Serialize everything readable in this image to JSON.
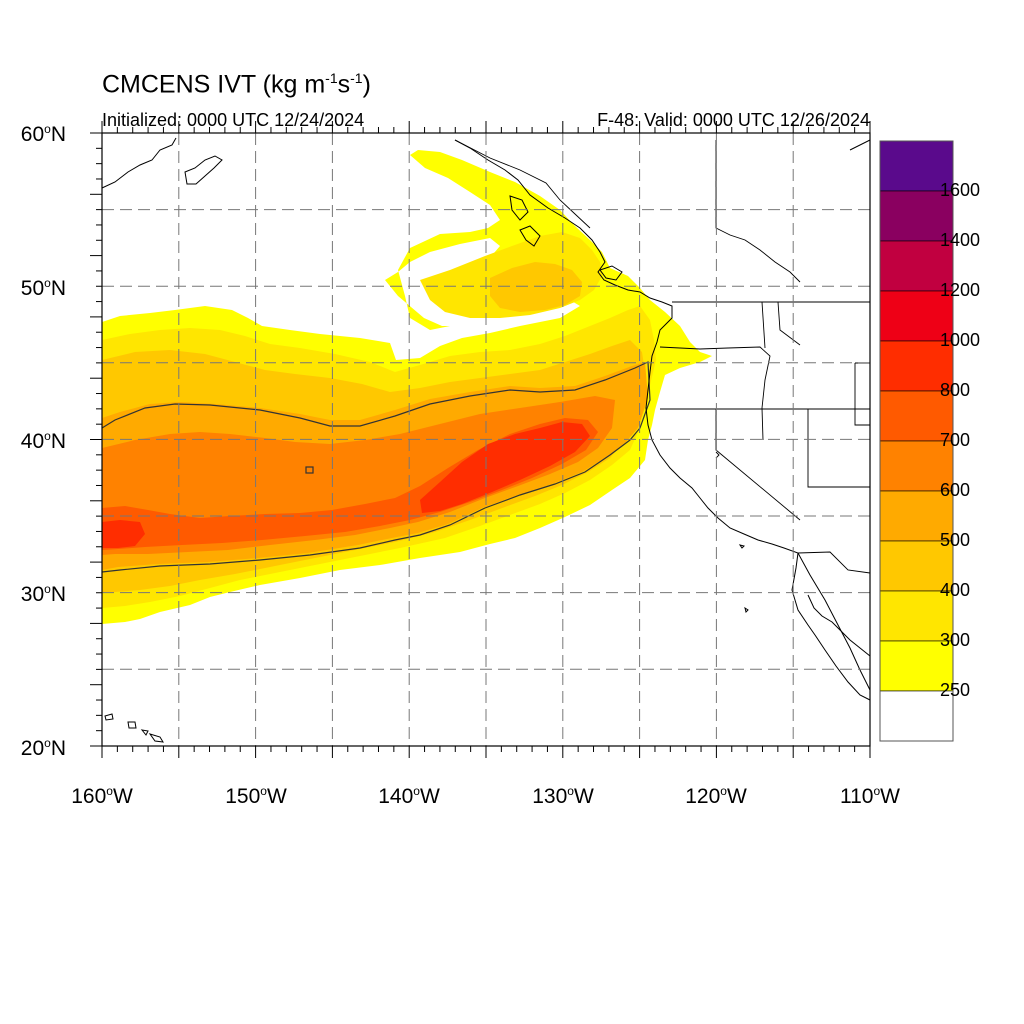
{
  "header": {
    "title_main": "CMCENS IVT (kg m",
    "title_exp1": "-1",
    "title_mid": "s",
    "title_exp2": "-1",
    "title_end": ")",
    "initialized": "Initialized: 0000 UTC 12/24/2024",
    "valid": "F-48: Valid: 0000 UTC 12/26/2024"
  },
  "map": {
    "lat_labels": [
      {
        "deg": "60",
        "hemi": "N"
      },
      {
        "deg": "50",
        "hemi": "N"
      },
      {
        "deg": "40",
        "hemi": "N"
      },
      {
        "deg": "30",
        "hemi": "N"
      },
      {
        "deg": "20",
        "hemi": "N"
      }
    ],
    "lon_labels": [
      {
        "deg": "160",
        "hemi": "W"
      },
      {
        "deg": "150",
        "hemi": "W"
      },
      {
        "deg": "140",
        "hemi": "W"
      },
      {
        "deg": "130",
        "hemi": "W"
      },
      {
        "deg": "120",
        "hemi": "W"
      },
      {
        "deg": "110",
        "hemi": "W"
      }
    ],
    "colors": {
      "lt250": "#ffffff",
      "c250": "#ffff00",
      "c300": "#ffe600",
      "c400": "#ffc800",
      "c500": "#ffaa00",
      "c600": "#ff8200",
      "c700": "#ff5a00",
      "c800": "#ff2d00",
      "c1000": "#ee0016",
      "c1200": "#c10040",
      "c1400": "#8a0060",
      "c1600": "#5a0a8c"
    }
  },
  "colorbar": {
    "labels": [
      "1600",
      "1400",
      "1200",
      "1000",
      "800",
      "700",
      "600",
      "500",
      "400",
      "300",
      "250"
    ],
    "colors": [
      "#5a0a8c",
      "#8a0060",
      "#c10040",
      "#ee0016",
      "#ff2d00",
      "#ff5a00",
      "#ff8200",
      "#ffaa00",
      "#ffc800",
      "#ffe600",
      "#ffff00",
      "#ffffff"
    ]
  }
}
